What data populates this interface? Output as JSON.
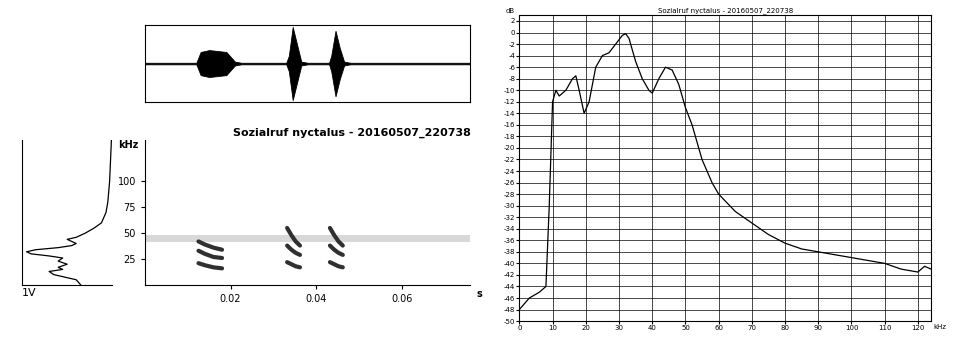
{
  "chart_data": [
    {
      "type": "area",
      "tick_labels": false,
      "color": "#000000",
      "x": [
        0,
        0.012,
        0.013,
        0.015,
        0.019,
        0.021,
        0.0225,
        0.033,
        0.0336,
        0.0345,
        0.0355,
        0.0365,
        0.038,
        0.043,
        0.0435,
        0.0445,
        0.0455,
        0.0465,
        0.048,
        0.076
      ],
      "values": [
        0.02,
        0.02,
        0.3,
        0.35,
        0.3,
        0.05,
        0.02,
        0.02,
        0.2,
        0.95,
        0.5,
        0.05,
        0.02,
        0.02,
        0.2,
        0.85,
        0.4,
        0.05,
        0.02,
        0.02
      ],
      "xlim": [
        0,
        0.076
      ],
      "ylim": [
        -1,
        1
      ]
    },
    {
      "type": "line",
      "orientation": "horizontal",
      "tick_labels": false,
      "xlabel": "1V",
      "color": "#000000",
      "x": [
        0,
        5,
        10,
        13,
        15,
        17,
        20,
        23,
        26,
        28,
        30,
        32,
        34,
        36,
        38,
        40,
        42,
        44,
        46,
        50,
        55,
        60,
        70,
        80,
        100,
        120,
        140
      ],
      "values": [
        0.35,
        0.4,
        0.65,
        0.7,
        0.55,
        0.6,
        0.5,
        0.6,
        0.55,
        0.7,
        0.9,
        0.95,
        0.85,
        0.6,
        0.45,
        0.4,
        0.45,
        0.5,
        0.4,
        0.3,
        0.2,
        0.12,
        0.07,
        0.05,
        0.03,
        0.02,
        0.01
      ],
      "xlim": [
        1,
        0
      ],
      "ylim": [
        0,
        140
      ]
    },
    {
      "type": "spectrogram",
      "title": "Sozialruf nyctalus - 20160507_220738",
      "xlabel": "s",
      "ylabel": "kHz",
      "xlim": [
        0,
        0.076
      ],
      "ylim": [
        0,
        140
      ],
      "xticks": [
        0.02,
        0.04,
        0.06
      ],
      "yticks": [
        25,
        50,
        75,
        100
      ],
      "series": [
        {
          "color": "#d8d8d8",
          "x": [
            0,
            0.076
          ],
          "values": [
            45,
            45
          ]
        },
        {
          "color": "#303030",
          "x": [
            0.0125,
            0.014,
            0.016,
            0.018
          ],
          "values": [
            42,
            39,
            36,
            34
          ]
        },
        {
          "color": "#303030",
          "x": [
            0.0125,
            0.014,
            0.016,
            0.018
          ],
          "values": [
            33,
            30,
            27,
            26
          ]
        },
        {
          "color": "#303030",
          "x": [
            0.0125,
            0.014,
            0.016,
            0.018
          ],
          "values": [
            21,
            19,
            17,
            16
          ]
        },
        {
          "color": "#303030",
          "x": [
            0.0332,
            0.0342,
            0.0352,
            0.0362
          ],
          "values": [
            55,
            48,
            42,
            38
          ]
        },
        {
          "color": "#303030",
          "x": [
            0.0332,
            0.0342,
            0.0352,
            0.0362
          ],
          "values": [
            38,
            34,
            31,
            29
          ]
        },
        {
          "color": "#303030",
          "x": [
            0.0332,
            0.0342,
            0.0352,
            0.0362
          ],
          "values": [
            22,
            20,
            18,
            17
          ]
        },
        {
          "color": "#303030",
          "x": [
            0.0432,
            0.0442,
            0.0452,
            0.0462
          ],
          "values": [
            55,
            48,
            42,
            38
          ]
        },
        {
          "color": "#303030",
          "x": [
            0.0432,
            0.0442,
            0.0452,
            0.0462
          ],
          "values": [
            38,
            34,
            31,
            29
          ]
        },
        {
          "color": "#303030",
          "x": [
            0.0432,
            0.0442,
            0.0452,
            0.0462
          ],
          "values": [
            22,
            20,
            18,
            17
          ]
        }
      ]
    },
    {
      "type": "line",
      "title": "Sozialruf nyctalus - 20160507_220738",
      "xlabel": "kHz",
      "ylabel": "dB",
      "color": "#000000",
      "grid": true,
      "x": [
        0,
        3,
        6,
        8,
        9,
        10,
        11,
        12,
        14,
        16,
        17,
        18,
        19.5,
        21,
        23,
        25,
        27,
        29,
        31,
        32,
        33,
        35,
        37,
        39,
        40,
        42,
        44,
        46,
        48,
        50,
        52,
        55,
        58,
        60,
        65,
        70,
        75,
        80,
        85,
        90,
        95,
        100,
        105,
        110,
        115,
        120,
        122,
        124
      ],
      "values": [
        -48,
        -46,
        -45,
        -44,
        -30,
        -12,
        -10,
        -11,
        -10,
        -8,
        -7.5,
        -10,
        -14,
        -12,
        -6,
        -4,
        -3.5,
        -2,
        -0.5,
        -0.2,
        -1,
        -5,
        -8,
        -10,
        -10.5,
        -8,
        -6,
        -6.5,
        -9,
        -13,
        -16,
        -22,
        -26,
        -28,
        -31,
        -33,
        -35,
        -36.5,
        -37.5,
        -38,
        -38.5,
        -39,
        -39.5,
        -40,
        -41,
        -41.5,
        -40.5,
        -41
      ],
      "xlim": [
        0,
        124
      ],
      "ylim": [
        -50,
        3
      ],
      "xticks": [
        0,
        10,
        20,
        30,
        40,
        50,
        60,
        70,
        80,
        90,
        100,
        110,
        120
      ],
      "yticks": [
        -50,
        -48,
        -46,
        -44,
        -42,
        -40,
        -38,
        -36,
        -34,
        -32,
        -30,
        -28,
        -26,
        -24,
        -22,
        -20,
        -18,
        -16,
        -14,
        -12,
        -10,
        -8,
        -6,
        -4,
        -2,
        0,
        2
      ]
    }
  ]
}
